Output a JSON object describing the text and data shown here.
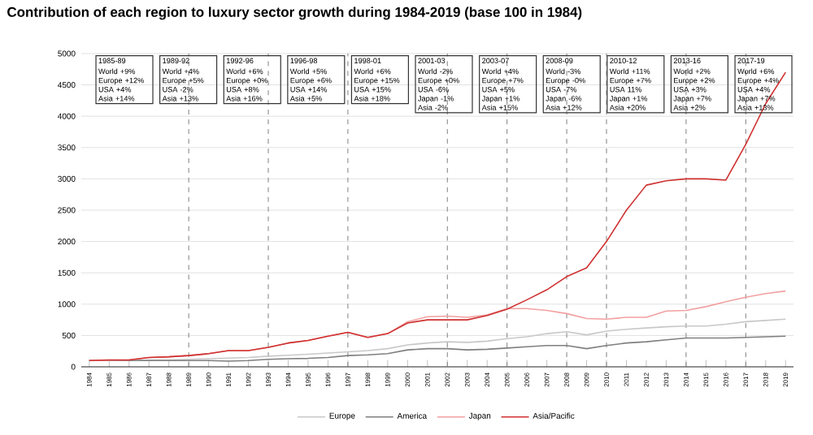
{
  "chart_data": {
    "type": "line",
    "title": "Contribution of each region to luxury sector growth during 1984-2019 (base 100 in 1984)",
    "x": [
      1984,
      1985,
      1986,
      1987,
      1988,
      1989,
      1990,
      1991,
      1992,
      1993,
      1994,
      1995,
      1996,
      1997,
      1998,
      1999,
      2000,
      2001,
      2002,
      2003,
      2004,
      2005,
      2006,
      2007,
      2008,
      2009,
      2010,
      2011,
      2012,
      2013,
      2014,
      2015,
      2016,
      2017,
      2018,
      2019
    ],
    "xlim": [
      1983.6,
      2019.4
    ],
    "xticks": [
      1984,
      1985,
      1986,
      1987,
      1988,
      1989,
      1990,
      1991,
      1992,
      1993,
      1994,
      1995,
      1996,
      1997,
      1998,
      1999,
      2000,
      2001,
      2002,
      2003,
      2004,
      2005,
      2006,
      2007,
      2008,
      2009,
      2010,
      2011,
      2012,
      2013,
      2014,
      2015,
      2016,
      2017,
      2018,
      2019
    ],
    "ylim": [
      0,
      5000
    ],
    "yticks": [
      0,
      500,
      1000,
      1500,
      2000,
      2500,
      3000,
      3500,
      4000,
      4500,
      5000
    ],
    "series": [
      {
        "name": "Europe",
        "color": "#c8c8c8",
        "values": [
          100,
          100,
          100,
          110,
          110,
          120,
          130,
          140,
          150,
          170,
          185,
          200,
          220,
          240,
          260,
          290,
          350,
          380,
          400,
          390,
          410,
          450,
          480,
          530,
          560,
          510,
          570,
          600,
          620,
          640,
          650,
          650,
          680,
          720,
          740,
          760
        ]
      },
      {
        "name": "America",
        "color": "#7f7f7f",
        "values": [
          100,
          100,
          100,
          100,
          100,
          100,
          100,
          90,
          100,
          120,
          130,
          135,
          150,
          180,
          190,
          210,
          270,
          290,
          290,
          270,
          280,
          300,
          320,
          340,
          340,
          290,
          340,
          380,
          400,
          430,
          460,
          460,
          460,
          470,
          480,
          490
        ]
      },
      {
        "name": "Japan",
        "color": "#f2a0a0",
        "values": [
          100,
          null,
          110,
          150,
          160,
          180,
          210,
          260,
          260,
          310,
          380,
          420,
          490,
          550,
          470,
          530,
          720,
          800,
          810,
          790,
          830,
          930,
          930,
          900,
          850,
          770,
          760,
          790,
          790,
          890,
          900,
          960,
          1040,
          1110,
          1170,
          1210
        ]
      },
      {
        "name": "Asia/Pacific",
        "color": "#d03030",
        "values": [
          100,
          110,
          110,
          150,
          160,
          180,
          210,
          260,
          260,
          310,
          380,
          420,
          490,
          550,
          470,
          530,
          700,
          750,
          750,
          750,
          820,
          920,
          1070,
          1230,
          1440,
          1580,
          2000,
          2500,
          2900,
          2970,
          3000,
          3000,
          2980,
          3550,
          4200,
          4700
        ]
      }
    ],
    "ref_lines": [
      {
        "axis": "x",
        "value": 1989,
        "color": "#808080",
        "line_style": "dashed"
      },
      {
        "axis": "x",
        "value": 1993,
        "color": "#808080",
        "line_style": "dashed"
      },
      {
        "axis": "x",
        "value": 1997,
        "color": "#808080",
        "line_style": "dashed"
      },
      {
        "axis": "x",
        "value": 2002,
        "color": "#808080",
        "line_style": "dashed"
      },
      {
        "axis": "x",
        "value": 2005,
        "color": "#808080",
        "line_style": "dashed"
      },
      {
        "axis": "x",
        "value": 2008,
        "color": "#808080",
        "line_style": "dashed"
      },
      {
        "axis": "x",
        "value": 2010,
        "color": "#808080",
        "line_style": "dashed"
      },
      {
        "axis": "x",
        "value": 2014,
        "color": "#808080",
        "line_style": "dashed"
      },
      {
        "axis": "x",
        "value": 2017,
        "color": "#808080",
        "line_style": "dashed"
      }
    ],
    "annotations": [
      "1985-89",
      "World +9%",
      "Europe +12%",
      "USA +4%",
      "Asia +14%",
      "1989-92",
      "World +4%",
      "Europe +5%",
      "USA -2%",
      "Asia +13%",
      "1992-96",
      "World +6%",
      "Europe +0%",
      "USA +8%",
      "Asia +16%",
      "1996-98",
      "World +5%",
      "Europe +6%",
      "USA +14%",
      "Asia +5%",
      "1998-01",
      "World +6%",
      "Europe +15%",
      "USA +15%",
      "Asia +18%",
      "2001-03",
      "World -2%",
      "Europe +0%",
      "USA -6%",
      "Japan -1%",
      "Asia -2%",
      "2003-07",
      "World +4%",
      "Europe +7%",
      "USA +5%",
      "Japan +1%",
      "Asia +15%",
      "2008-09",
      "World -3%",
      "Europe -0%",
      "USA -7%",
      "Japan -6%",
      "Asia +12%",
      "2010-12",
      "World +11%",
      "Europe +7%",
      "USA 11%",
      "Japan +1%",
      "Asia +20%",
      "2013-16",
      "World +2%",
      "Europe +2%",
      "USA +3%",
      "Japan +7%",
      "Asia +2%",
      "2017-19",
      "World +6%",
      "Europe +4%",
      "USA +4%",
      "Japan +7%",
      "Asia +13%"
    ],
    "grid": "y",
    "legend": "bottom",
    "marker": "none",
    "line_style": "solid"
  }
}
